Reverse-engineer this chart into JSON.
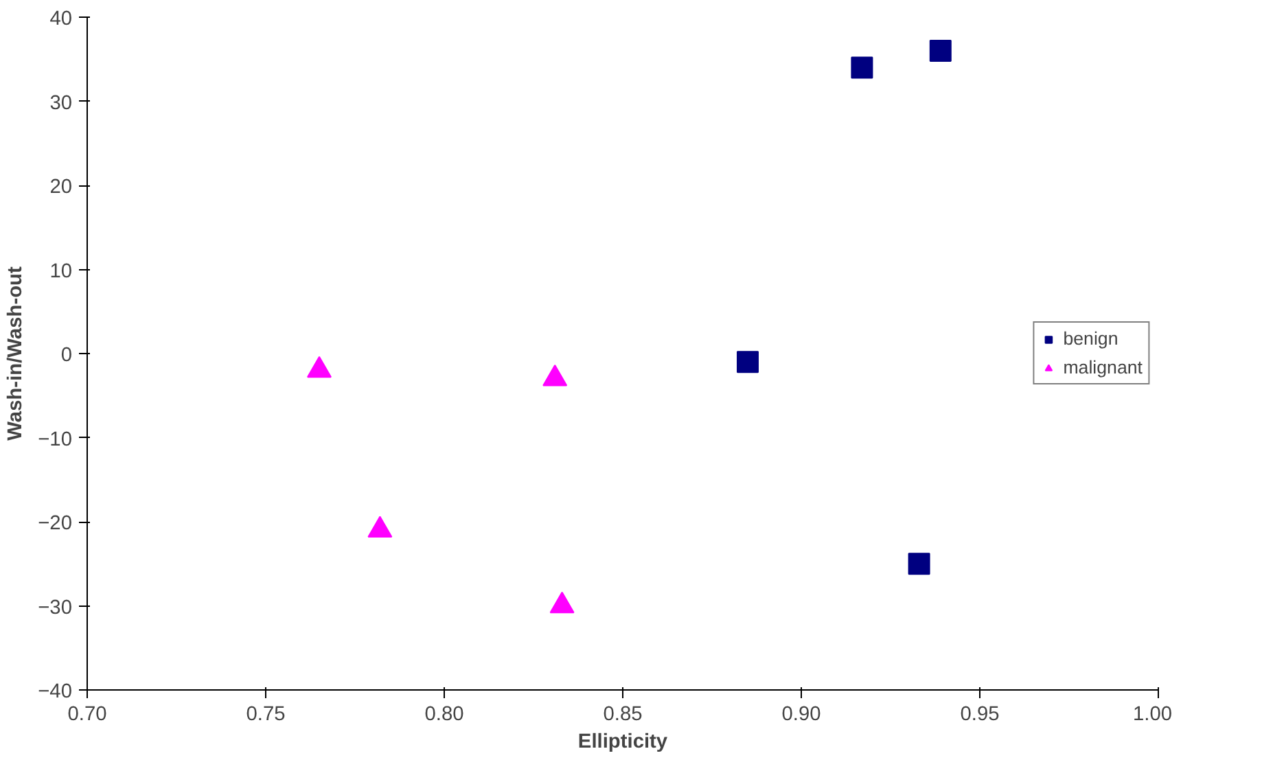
{
  "chart_data": {
    "type": "scatter",
    "xlabel": "Ellipticity",
    "ylabel": "Wash-in/Wash-out",
    "xlim": [
      0.7,
      1.0
    ],
    "ylim": [
      -40,
      40
    ],
    "xticks": [
      {
        "value": 0.7,
        "label": "0.70"
      },
      {
        "value": 0.75,
        "label": "0.75"
      },
      {
        "value": 0.8,
        "label": "0.80"
      },
      {
        "value": 0.85,
        "label": "0.85"
      },
      {
        "value": 0.9,
        "label": "0.90"
      },
      {
        "value": 0.95,
        "label": "0.95"
      },
      {
        "value": 1.0,
        "label": "1.00"
      }
    ],
    "yticks": [
      -40,
      -30,
      -20,
      -10,
      0,
      10,
      20,
      30,
      40
    ],
    "grid": false,
    "legend": "right",
    "series": [
      {
        "name": "benign",
        "color": "#000080",
        "marker": "square",
        "x": [
          0.917,
          0.939,
          0.885,
          0.933
        ],
        "values": [
          34,
          36,
          -1,
          -25
        ]
      },
      {
        "name": "malignant",
        "color": "#ff00ff",
        "marker": "triangle",
        "x": [
          0.765,
          0.782,
          0.831,
          0.833
        ],
        "values": [
          -2,
          -21,
          -3,
          -30
        ]
      }
    ]
  }
}
